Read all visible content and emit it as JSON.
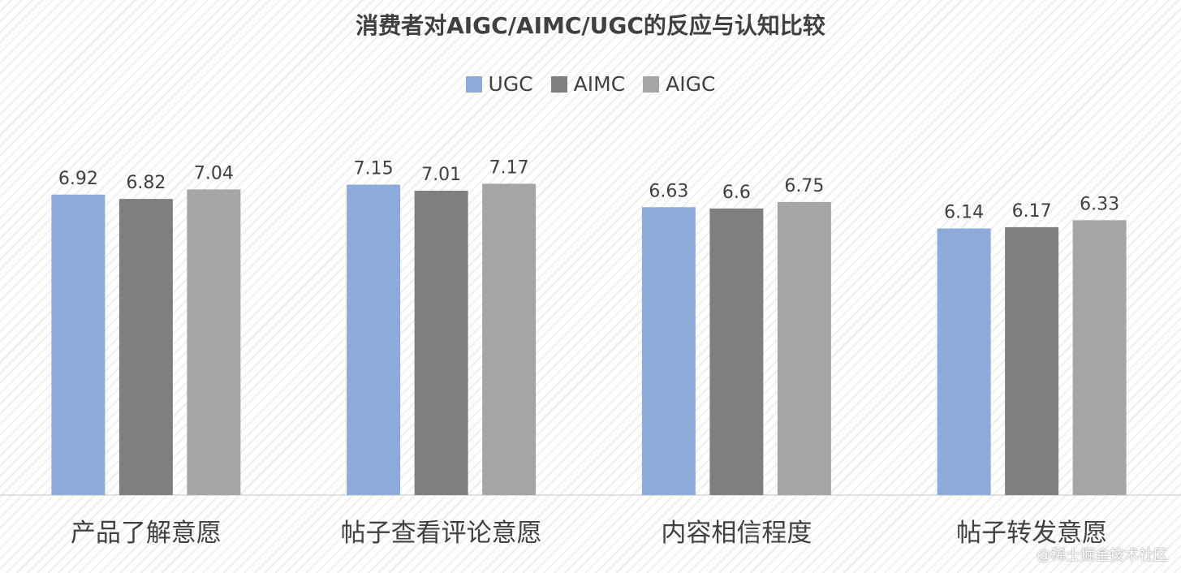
{
  "chart_data": {
    "type": "bar",
    "title": "消费者对AIGC/AIMC/UGC的反应与认知比较",
    "categories": [
      "产品了解意愿",
      "帖子查看评论意愿",
      "内容相信程度",
      "帖子转发意愿"
    ],
    "series": [
      {
        "name": "UGC",
        "color": "#8eaadb",
        "values": [
          6.92,
          7.15,
          6.63,
          6.14
        ]
      },
      {
        "name": "AIMC",
        "color": "#7f7f7f",
        "values": [
          6.82,
          7.01,
          6.6,
          6.17
        ]
      },
      {
        "name": "AIGC",
        "color": "#a5a5a5",
        "values": [
          7.04,
          7.17,
          6.75,
          6.33
        ]
      }
    ],
    "xlabel": "",
    "ylabel": "",
    "ylim": [
      0,
      10
    ],
    "legend_position": "top",
    "grid": false
  },
  "watermark": "@稀土掘金技术社区"
}
